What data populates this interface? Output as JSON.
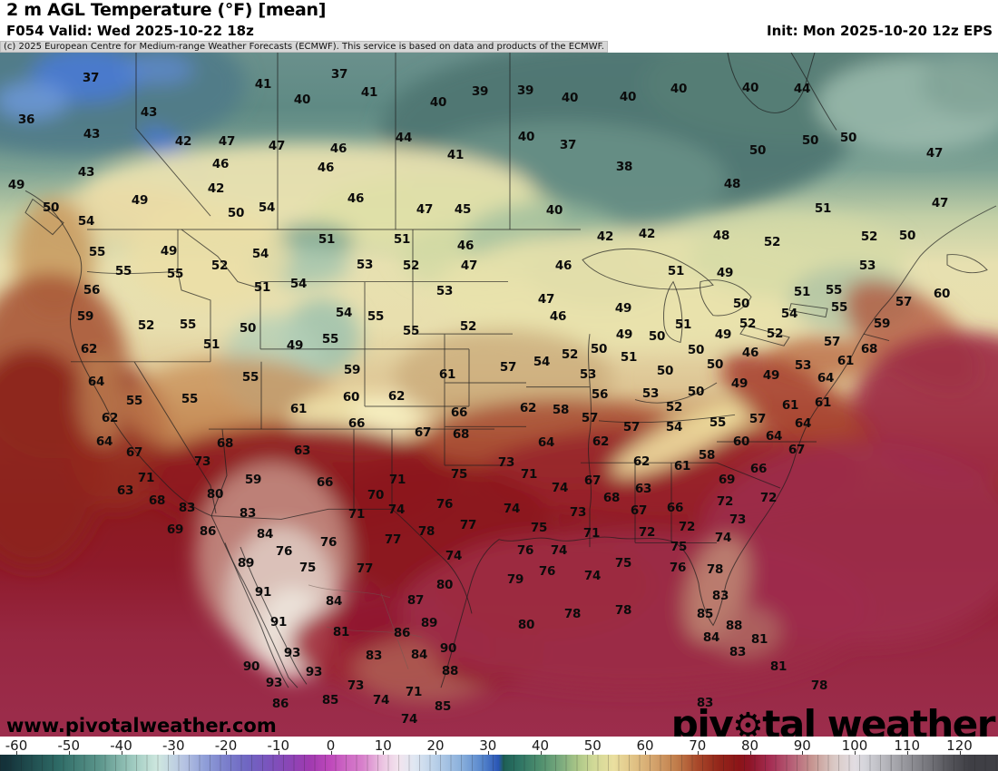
{
  "header": {
    "title": "2 m AGL Temperature (°F) [mean]",
    "valid": "F054 Valid: Wed 2025-10-22 18z",
    "init": "Init: Mon 2025-10-20 12z EPS",
    "copyright": "(c) 2025 European Centre for Medium-range Weather Forecasts (ECMWF). This service is based on data and products of the ECMWF."
  },
  "map": {
    "watermark": "www.pivotalweather.com",
    "logo": {
      "pre": "piv",
      "gear_icon": "⚙",
      "post": "tal weather"
    },
    "labels": [
      [
        37,
        100,
        86
      ],
      [
        41,
        290,
        93
      ],
      [
        37,
        374,
        82
      ],
      [
        40,
        333,
        110
      ],
      [
        41,
        407,
        102
      ],
      [
        40,
        483,
        113
      ],
      [
        39,
        529,
        101
      ],
      [
        40,
        628,
        108
      ],
      [
        40,
        748,
        98
      ],
      [
        40,
        827,
        97
      ],
      [
        44,
        884,
        98
      ],
      [
        36,
        29,
        132
      ],
      [
        43,
        164,
        124
      ],
      [
        43,
        101,
        148
      ],
      [
        42,
        202,
        156
      ],
      [
        47,
        250,
        156
      ],
      [
        47,
        305,
        161
      ],
      [
        46,
        373,
        164
      ],
      [
        44,
        445,
        152
      ],
      [
        41,
        502,
        171
      ],
      [
        39,
        579,
        100
      ],
      [
        40,
        692,
        107
      ],
      [
        40,
        580,
        151
      ],
      [
        37,
        626,
        160
      ],
      [
        38,
        688,
        184
      ],
      [
        50,
        835,
        166
      ],
      [
        50,
        893,
        155
      ],
      [
        50,
        935,
        152
      ],
      [
        47,
        1030,
        169
      ],
      [
        43,
        95,
        190
      ],
      [
        46,
        243,
        181
      ],
      [
        46,
        359,
        185
      ],
      [
        42,
        238,
        208
      ],
      [
        49,
        18,
        204
      ],
      [
        49,
        154,
        221
      ],
      [
        46,
        392,
        219
      ],
      [
        48,
        807,
        203
      ],
      [
        40,
        611,
        232
      ],
      [
        51,
        907,
        230
      ],
      [
        47,
        1036,
        224
      ],
      [
        50,
        260,
        235
      ],
      [
        54,
        294,
        229
      ],
      [
        47,
        468,
        231
      ],
      [
        45,
        510,
        231
      ],
      [
        50,
        56,
        229
      ],
      [
        54,
        95,
        244
      ],
      [
        42,
        667,
        261
      ],
      [
        42,
        713,
        258
      ],
      [
        48,
        795,
        260
      ],
      [
        52,
        851,
        267
      ],
      [
        52,
        958,
        261
      ],
      [
        50,
        1000,
        260
      ],
      [
        51,
        360,
        264
      ],
      [
        51,
        443,
        264
      ],
      [
        46,
        513,
        271
      ],
      [
        55,
        107,
        278
      ],
      [
        49,
        186,
        277
      ],
      [
        54,
        287,
        280
      ],
      [
        52,
        242,
        293
      ],
      [
        55,
        136,
        299
      ],
      [
        55,
        193,
        302
      ],
      [
        53,
        402,
        292
      ],
      [
        52,
        453,
        293
      ],
      [
        47,
        517,
        293
      ],
      [
        56,
        101,
        320
      ],
      [
        51,
        289,
        317
      ],
      [
        54,
        329,
        313
      ],
      [
        53,
        490,
        321
      ],
      [
        59,
        94,
        349
      ],
      [
        52,
        161,
        359
      ],
      [
        55,
        207,
        358
      ],
      [
        50,
        273,
        362
      ],
      [
        54,
        379,
        345
      ],
      [
        55,
        414,
        349
      ],
      [
        55,
        453,
        365
      ],
      [
        52,
        516,
        360
      ],
      [
        62,
        98,
        385
      ],
      [
        51,
        233,
        380
      ],
      [
        49,
        325,
        381
      ],
      [
        55,
        364,
        374
      ],
      [
        59,
        388,
        408
      ],
      [
        61,
        493,
        413
      ],
      [
        64,
        106,
        421
      ],
      [
        55,
        276,
        416
      ],
      [
        62,
        437,
        437
      ],
      [
        55,
        148,
        442
      ],
      [
        55,
        209,
        440
      ],
      [
        60,
        387,
        438
      ],
      [
        61,
        329,
        451
      ],
      [
        66,
        506,
        455
      ],
      [
        62,
        121,
        461
      ],
      [
        66,
        393,
        467
      ],
      [
        67,
        466,
        477
      ],
      [
        68,
        508,
        479
      ],
      [
        64,
        115,
        487
      ],
      [
        68,
        248,
        489
      ],
      [
        67,
        148,
        499
      ],
      [
        63,
        333,
        497
      ],
      [
        46,
        621,
        293
      ],
      [
        51,
        745,
        299
      ],
      [
        49,
        799,
        301
      ],
      [
        53,
        956,
        293
      ],
      [
        47,
        602,
        330
      ],
      [
        51,
        884,
        322
      ],
      [
        55,
        919,
        320
      ],
      [
        60,
        1038,
        324
      ],
      [
        46,
        615,
        349
      ],
      [
        49,
        687,
        340
      ],
      [
        50,
        817,
        335
      ],
      [
        55,
        925,
        339
      ],
      [
        57,
        996,
        333
      ],
      [
        59,
        972,
        357
      ],
      [
        51,
        753,
        358
      ],
      [
        52,
        824,
        357
      ],
      [
        54,
        870,
        346
      ],
      [
        52,
        854,
        368
      ],
      [
        49,
        688,
        369
      ],
      [
        50,
        724,
        371
      ],
      [
        49,
        797,
        369
      ],
      [
        57,
        917,
        377
      ],
      [
        52,
        628,
        391
      ],
      [
        54,
        597,
        399
      ],
      [
        50,
        660,
        385
      ],
      [
        51,
        693,
        394
      ],
      [
        50,
        767,
        386
      ],
      [
        46,
        827,
        389
      ],
      [
        61,
        932,
        398
      ],
      [
        68,
        958,
        385
      ],
      [
        57,
        560,
        405
      ],
      [
        53,
        648,
        413
      ],
      [
        50,
        788,
        402
      ],
      [
        53,
        885,
        403
      ],
      [
        50,
        733,
        409
      ],
      [
        49,
        850,
        414
      ],
      [
        64,
        910,
        417
      ],
      [
        49,
        815,
        423
      ],
      [
        56,
        661,
        435
      ],
      [
        53,
        717,
        434
      ],
      [
        50,
        767,
        432
      ],
      [
        58,
        618,
        452
      ],
      [
        62,
        582,
        450
      ],
      [
        57,
        650,
        461
      ],
      [
        52,
        743,
        449
      ],
      [
        61,
        871,
        447
      ],
      [
        61,
        907,
        444
      ],
      [
        55,
        791,
        466
      ],
      [
        57,
        835,
        462
      ],
      [
        64,
        885,
        467
      ],
      [
        57,
        696,
        471
      ],
      [
        54,
        743,
        471
      ],
      [
        64,
        853,
        481
      ],
      [
        60,
        817,
        487
      ],
      [
        64,
        602,
        488
      ],
      [
        62,
        662,
        487
      ],
      [
        67,
        878,
        496
      ],
      [
        73,
        223,
        509
      ],
      [
        71,
        161,
        527
      ],
      [
        59,
        279,
        529
      ],
      [
        66,
        358,
        532
      ],
      [
        71,
        438,
        529
      ],
      [
        75,
        506,
        523
      ],
      [
        63,
        138,
        541
      ],
      [
        80,
        237,
        545
      ],
      [
        70,
        414,
        546
      ],
      [
        68,
        173,
        552
      ],
      [
        83,
        206,
        560
      ],
      [
        83,
        273,
        566
      ],
      [
        71,
        393,
        567
      ],
      [
        74,
        437,
        562
      ],
      [
        76,
        490,
        556
      ],
      [
        69,
        193,
        584
      ],
      [
        86,
        229,
        586
      ],
      [
        84,
        292,
        589
      ],
      [
        76,
        362,
        598
      ],
      [
        77,
        433,
        595
      ],
      [
        78,
        470,
        586
      ],
      [
        77,
        516,
        579
      ],
      [
        76,
        313,
        608
      ],
      [
        89,
        271,
        621
      ],
      [
        75,
        339,
        626
      ],
      [
        77,
        402,
        627
      ],
      [
        74,
        500,
        613
      ],
      [
        80,
        490,
        645
      ],
      [
        91,
        290,
        653
      ],
      [
        84,
        368,
        663
      ],
      [
        87,
        458,
        662
      ],
      [
        91,
        307,
        686
      ],
      [
        89,
        473,
        687
      ],
      [
        81,
        376,
        697
      ],
      [
        86,
        443,
        698
      ],
      [
        90,
        494,
        715
      ],
      [
        93,
        322,
        720
      ],
      [
        83,
        412,
        723
      ],
      [
        84,
        462,
        722
      ],
      [
        73,
        558,
        510
      ],
      [
        62,
        707,
        509
      ],
      [
        58,
        779,
        502
      ],
      [
        61,
        752,
        514
      ],
      [
        66,
        836,
        517
      ],
      [
        71,
        583,
        523
      ],
      [
        74,
        617,
        538
      ],
      [
        67,
        653,
        530
      ],
      [
        69,
        801,
        529
      ],
      [
        63,
        709,
        539
      ],
      [
        68,
        674,
        549
      ],
      [
        72,
        799,
        553
      ],
      [
        72,
        847,
        549
      ],
      [
        74,
        564,
        561
      ],
      [
        73,
        637,
        565
      ],
      [
        67,
        704,
        563
      ],
      [
        66,
        744,
        560
      ],
      [
        73,
        813,
        573
      ],
      [
        75,
        594,
        582
      ],
      [
        71,
        652,
        588
      ],
      [
        72,
        713,
        587
      ],
      [
        72,
        757,
        581
      ],
      [
        74,
        797,
        593
      ],
      [
        76,
        579,
        607
      ],
      [
        74,
        616,
        607
      ],
      [
        75,
        748,
        603
      ],
      [
        76,
        603,
        630
      ],
      [
        79,
        568,
        639
      ],
      [
        75,
        687,
        621
      ],
      [
        74,
        653,
        635
      ],
      [
        76,
        747,
        626
      ],
      [
        78,
        788,
        628
      ],
      [
        83,
        794,
        657
      ],
      [
        78,
        631,
        677
      ],
      [
        78,
        687,
        673
      ],
      [
        85,
        777,
        677
      ],
      [
        80,
        580,
        689
      ],
      [
        88,
        809,
        690
      ],
      [
        84,
        784,
        703
      ],
      [
        81,
        837,
        705
      ],
      [
        83,
        813,
        719
      ],
      [
        90,
        277,
        735
      ],
      [
        93,
        302,
        753
      ],
      [
        93,
        346,
        741
      ],
      [
        73,
        392,
        756
      ],
      [
        71,
        456,
        763
      ],
      [
        86,
        309,
        776
      ],
      [
        85,
        364,
        772
      ],
      [
        74,
        420,
        772
      ],
      [
        85,
        488,
        779
      ],
      [
        74,
        451,
        793
      ],
      [
        88,
        496,
        740
      ],
      [
        81,
        858,
        735
      ],
      [
        78,
        903,
        756
      ],
      [
        83,
        777,
        775
      ]
    ]
  },
  "colorbar": {
    "tick_values": [
      -60,
      -50,
      -40,
      -30,
      -20,
      -10,
      0,
      10,
      20,
      30,
      40,
      50,
      60,
      70,
      80,
      90,
      100,
      110,
      120
    ],
    "stops": [
      [
        -62,
        "#14323a"
      ],
      [
        -52,
        "#2e6b66"
      ],
      [
        -44,
        "#5d968c"
      ],
      [
        -38,
        "#9cc8bd"
      ],
      [
        -33,
        "#cfe8e0"
      ],
      [
        -28,
        "#b6c3e2"
      ],
      [
        -24,
        "#8f9ed8"
      ],
      [
        -20,
        "#7b7fcb"
      ],
      [
        -16,
        "#6f66c2"
      ],
      [
        -12,
        "#7a54bd"
      ],
      [
        -8,
        "#8a46b6"
      ],
      [
        -4,
        "#a03ab0"
      ],
      [
        0,
        "#bf49bb"
      ],
      [
        3,
        "#cd68c4"
      ],
      [
        6,
        "#d77fcb"
      ],
      [
        10,
        "#ecc6e2"
      ],
      [
        13,
        "#f2e4ee"
      ],
      [
        16,
        "#dfe7f2"
      ],
      [
        20,
        "#b8cfe8"
      ],
      [
        25,
        "#89afdb"
      ],
      [
        29,
        "#5585cc"
      ],
      [
        32,
        "#2a55b5"
      ],
      [
        33,
        "#1d5f55"
      ],
      [
        36,
        "#2e7464"
      ],
      [
        40,
        "#4f8f6e"
      ],
      [
        44,
        "#7cab7e"
      ],
      [
        47,
        "#aac687"
      ],
      [
        50,
        "#cfd896"
      ],
      [
        54,
        "#eadfa0"
      ],
      [
        58,
        "#e0c184"
      ],
      [
        62,
        "#d2a06a"
      ],
      [
        66,
        "#c07c4a"
      ],
      [
        70,
        "#a8482a"
      ],
      [
        74,
        "#93261a"
      ],
      [
        78,
        "#8c1418"
      ],
      [
        80,
        "#8e1528"
      ],
      [
        84,
        "#a52e54"
      ],
      [
        88,
        "#b65f76"
      ],
      [
        92,
        "#c79792"
      ],
      [
        96,
        "#d9c8c4"
      ],
      [
        100,
        "#e2dde2"
      ],
      [
        102,
        "#d4d4da"
      ],
      [
        106,
        "#b4b4ba"
      ],
      [
        110,
        "#94949a"
      ],
      [
        114,
        "#76767c"
      ],
      [
        118,
        "#55555b"
      ],
      [
        122,
        "#3f3f45"
      ]
    ]
  }
}
